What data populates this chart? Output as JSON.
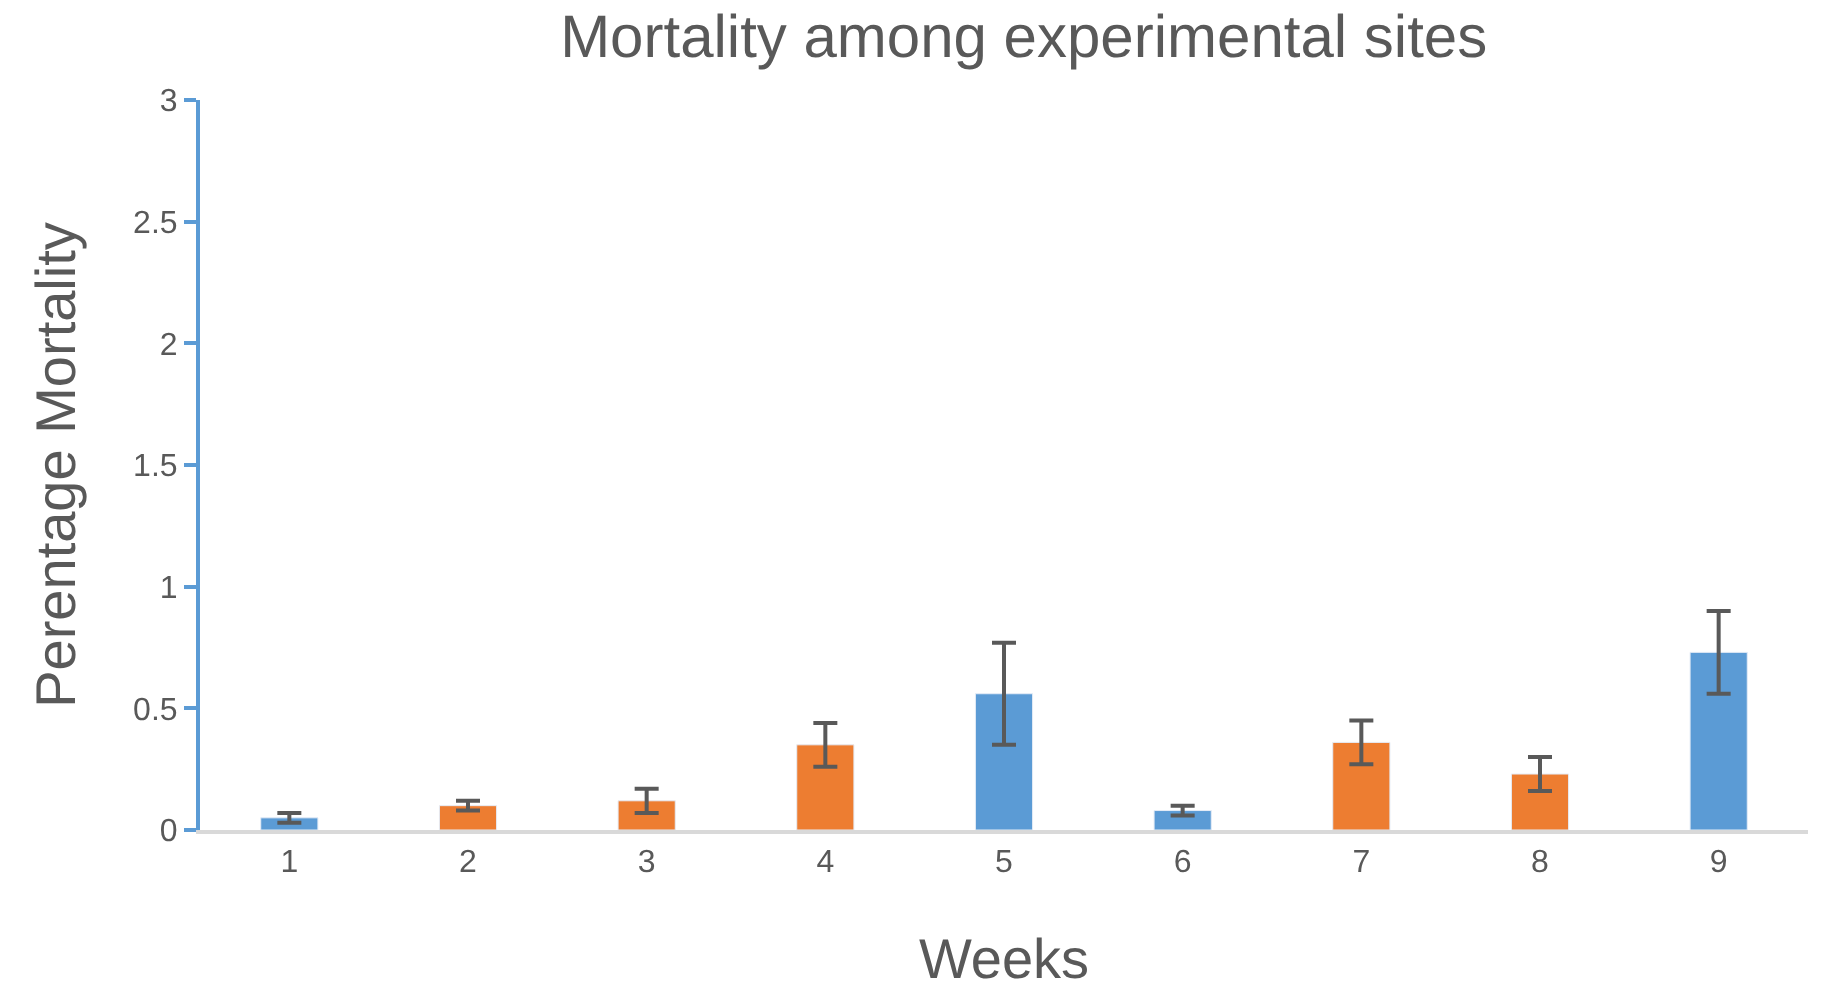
{
  "chart_data": {
    "type": "bar",
    "title": "Mortality among experimental sites",
    "xlabel": "Weeks",
    "ylabel": "Perentage Mortality",
    "categories": [
      "1",
      "2",
      "3",
      "4",
      "5",
      "6",
      "7",
      "8",
      "9"
    ],
    "values": [
      0.05,
      0.1,
      0.12,
      0.35,
      0.56,
      0.08,
      0.36,
      0.23,
      0.73
    ],
    "errors": [
      0.02,
      0.02,
      0.05,
      0.09,
      0.21,
      0.02,
      0.09,
      0.07,
      0.17
    ],
    "colors": [
      "#5b9bd5",
      "#ed7d31",
      "#ed7d31",
      "#ed7d31",
      "#5b9bd5",
      "#5b9bd5",
      "#ed7d31",
      "#ed7d31",
      "#5b9bd5"
    ],
    "ylim": [
      0,
      3
    ],
    "yticks": [
      0,
      0.5,
      1,
      1.5,
      2,
      2.5,
      3
    ]
  }
}
